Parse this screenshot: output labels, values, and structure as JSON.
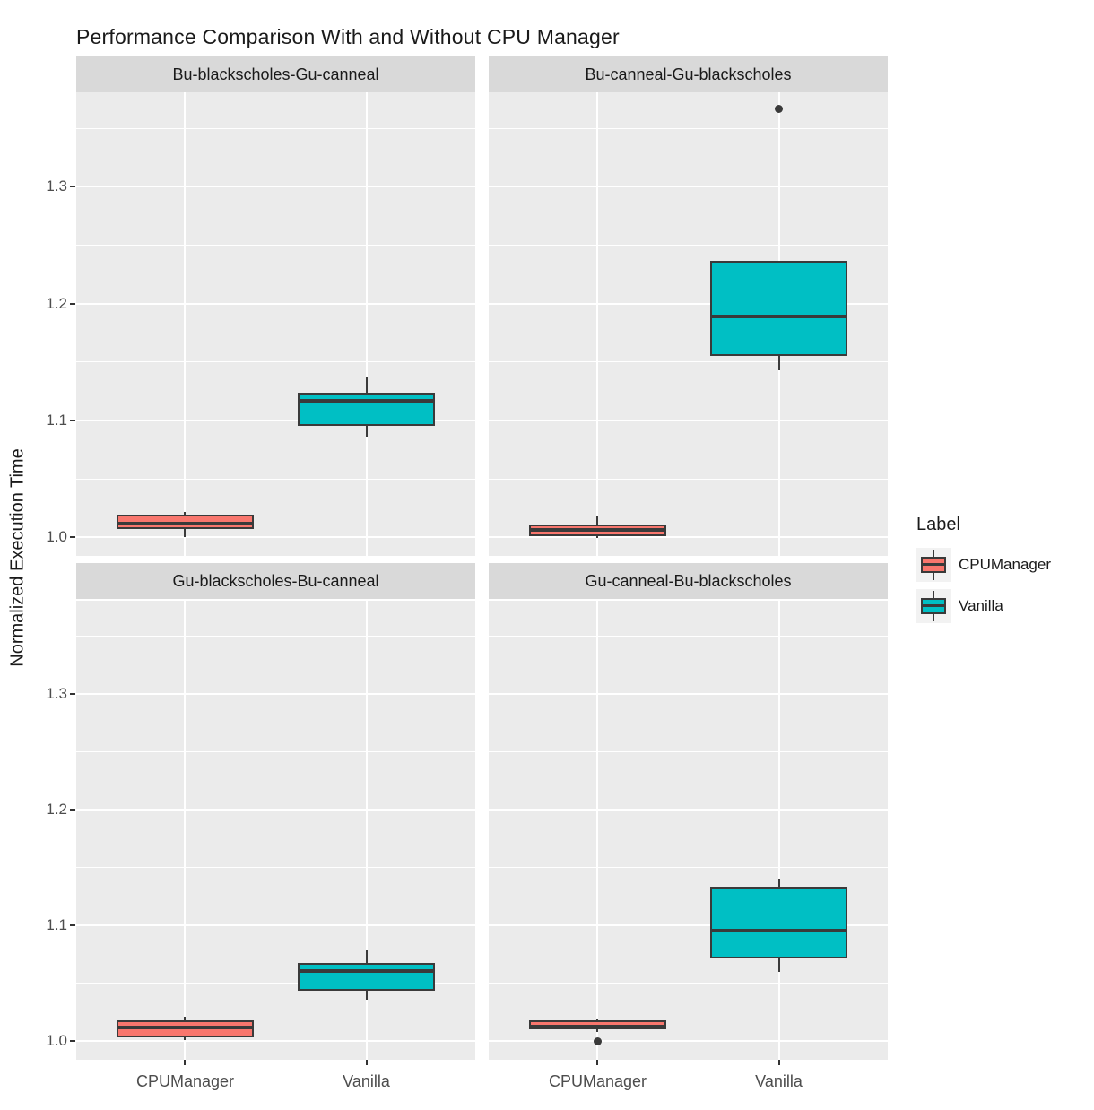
{
  "title": "Performance Comparison With and Without CPU Manager",
  "axes": {
    "y_label": "Normalized Execution Time",
    "x_categories": [
      "CPUManager",
      "Vanilla"
    ]
  },
  "legend": {
    "title": "Label",
    "entries": [
      {
        "label": "CPUManager",
        "color": "#F8766D"
      },
      {
        "label": "Vanilla",
        "color": "#00BFC4"
      }
    ]
  },
  "colors": {
    "cpumanager_fill": "#F8766D",
    "vanilla_fill": "#00BFC4",
    "box_border": "#3A3A3A",
    "panel_background": "#EBEBEB",
    "strip_background": "#D9D9D9",
    "gridline": "#FFFFFF",
    "axis_text": "#4D4D4D"
  },
  "chart_data": {
    "type": "boxplot",
    "title": "Performance Comparison With and Without CPU Manager",
    "ylabel": "Normalized Execution Time",
    "ylim": [
      0.984,
      1.381
    ],
    "y_major_ticks": [
      1.0,
      1.1,
      1.2,
      1.3
    ],
    "y_tick_labels": [
      "1.0",
      "1.1",
      "1.2",
      "1.3"
    ],
    "y_minor_ticks": [
      1.05,
      1.15,
      1.25,
      1.35
    ],
    "categories": [
      "CPUManager",
      "Vanilla"
    ],
    "category_pos": [
      0.273,
      0.727
    ],
    "box_width_frac": 0.345,
    "legend_title": "Label",
    "grid": true,
    "legend_position": "right",
    "facets": [
      {
        "label": "Bu-blackscholes-Gu-canneal",
        "boxes": [
          {
            "group": "CPUManager",
            "color": "#F8766D",
            "whisker_low": 1.0,
            "q1": 1.007,
            "median": 1.012,
            "q3": 1.019,
            "whisker_high": 1.022,
            "outliers": []
          },
          {
            "group": "Vanilla",
            "color": "#00BFC4",
            "whisker_low": 1.086,
            "q1": 1.095,
            "median": 1.117,
            "q3": 1.124,
            "whisker_high": 1.137,
            "outliers": []
          }
        ]
      },
      {
        "label": "Bu-canneal-Gu-blackscholes",
        "boxes": [
          {
            "group": "CPUManager",
            "color": "#F8766D",
            "whisker_low": 0.999,
            "q1": 1.001,
            "median": 1.006,
            "q3": 1.011,
            "whisker_high": 1.018,
            "outliers": []
          },
          {
            "group": "Vanilla",
            "color": "#00BFC4",
            "whisker_low": 1.143,
            "q1": 1.155,
            "median": 1.189,
            "q3": 1.237,
            "whisker_high": 1.237,
            "outliers": [
              1.367
            ]
          }
        ]
      },
      {
        "label": "Gu-blackscholes-Bu-canneal",
        "boxes": [
          {
            "group": "CPUManager",
            "color": "#F8766D",
            "whisker_low": 1.001,
            "q1": 1.003,
            "median": 1.012,
            "q3": 1.018,
            "whisker_high": 1.021,
            "outliers": []
          },
          {
            "group": "Vanilla",
            "color": "#00BFC4",
            "whisker_low": 1.036,
            "q1": 1.044,
            "median": 1.061,
            "q3": 1.068,
            "whisker_high": 1.079,
            "outliers": []
          }
        ]
      },
      {
        "label": "Gu-canneal-Bu-blackscholes",
        "boxes": [
          {
            "group": "CPUManager",
            "color": "#F8766D",
            "whisker_low": 1.008,
            "q1": 1.01,
            "median": 1.013,
            "q3": 1.018,
            "whisker_high": 1.019,
            "outliers": [
              1.0
            ]
          },
          {
            "group": "Vanilla",
            "color": "#00BFC4",
            "whisker_low": 1.06,
            "q1": 1.072,
            "median": 1.096,
            "q3": 1.134,
            "whisker_high": 1.141,
            "outliers": []
          }
        ]
      }
    ]
  }
}
